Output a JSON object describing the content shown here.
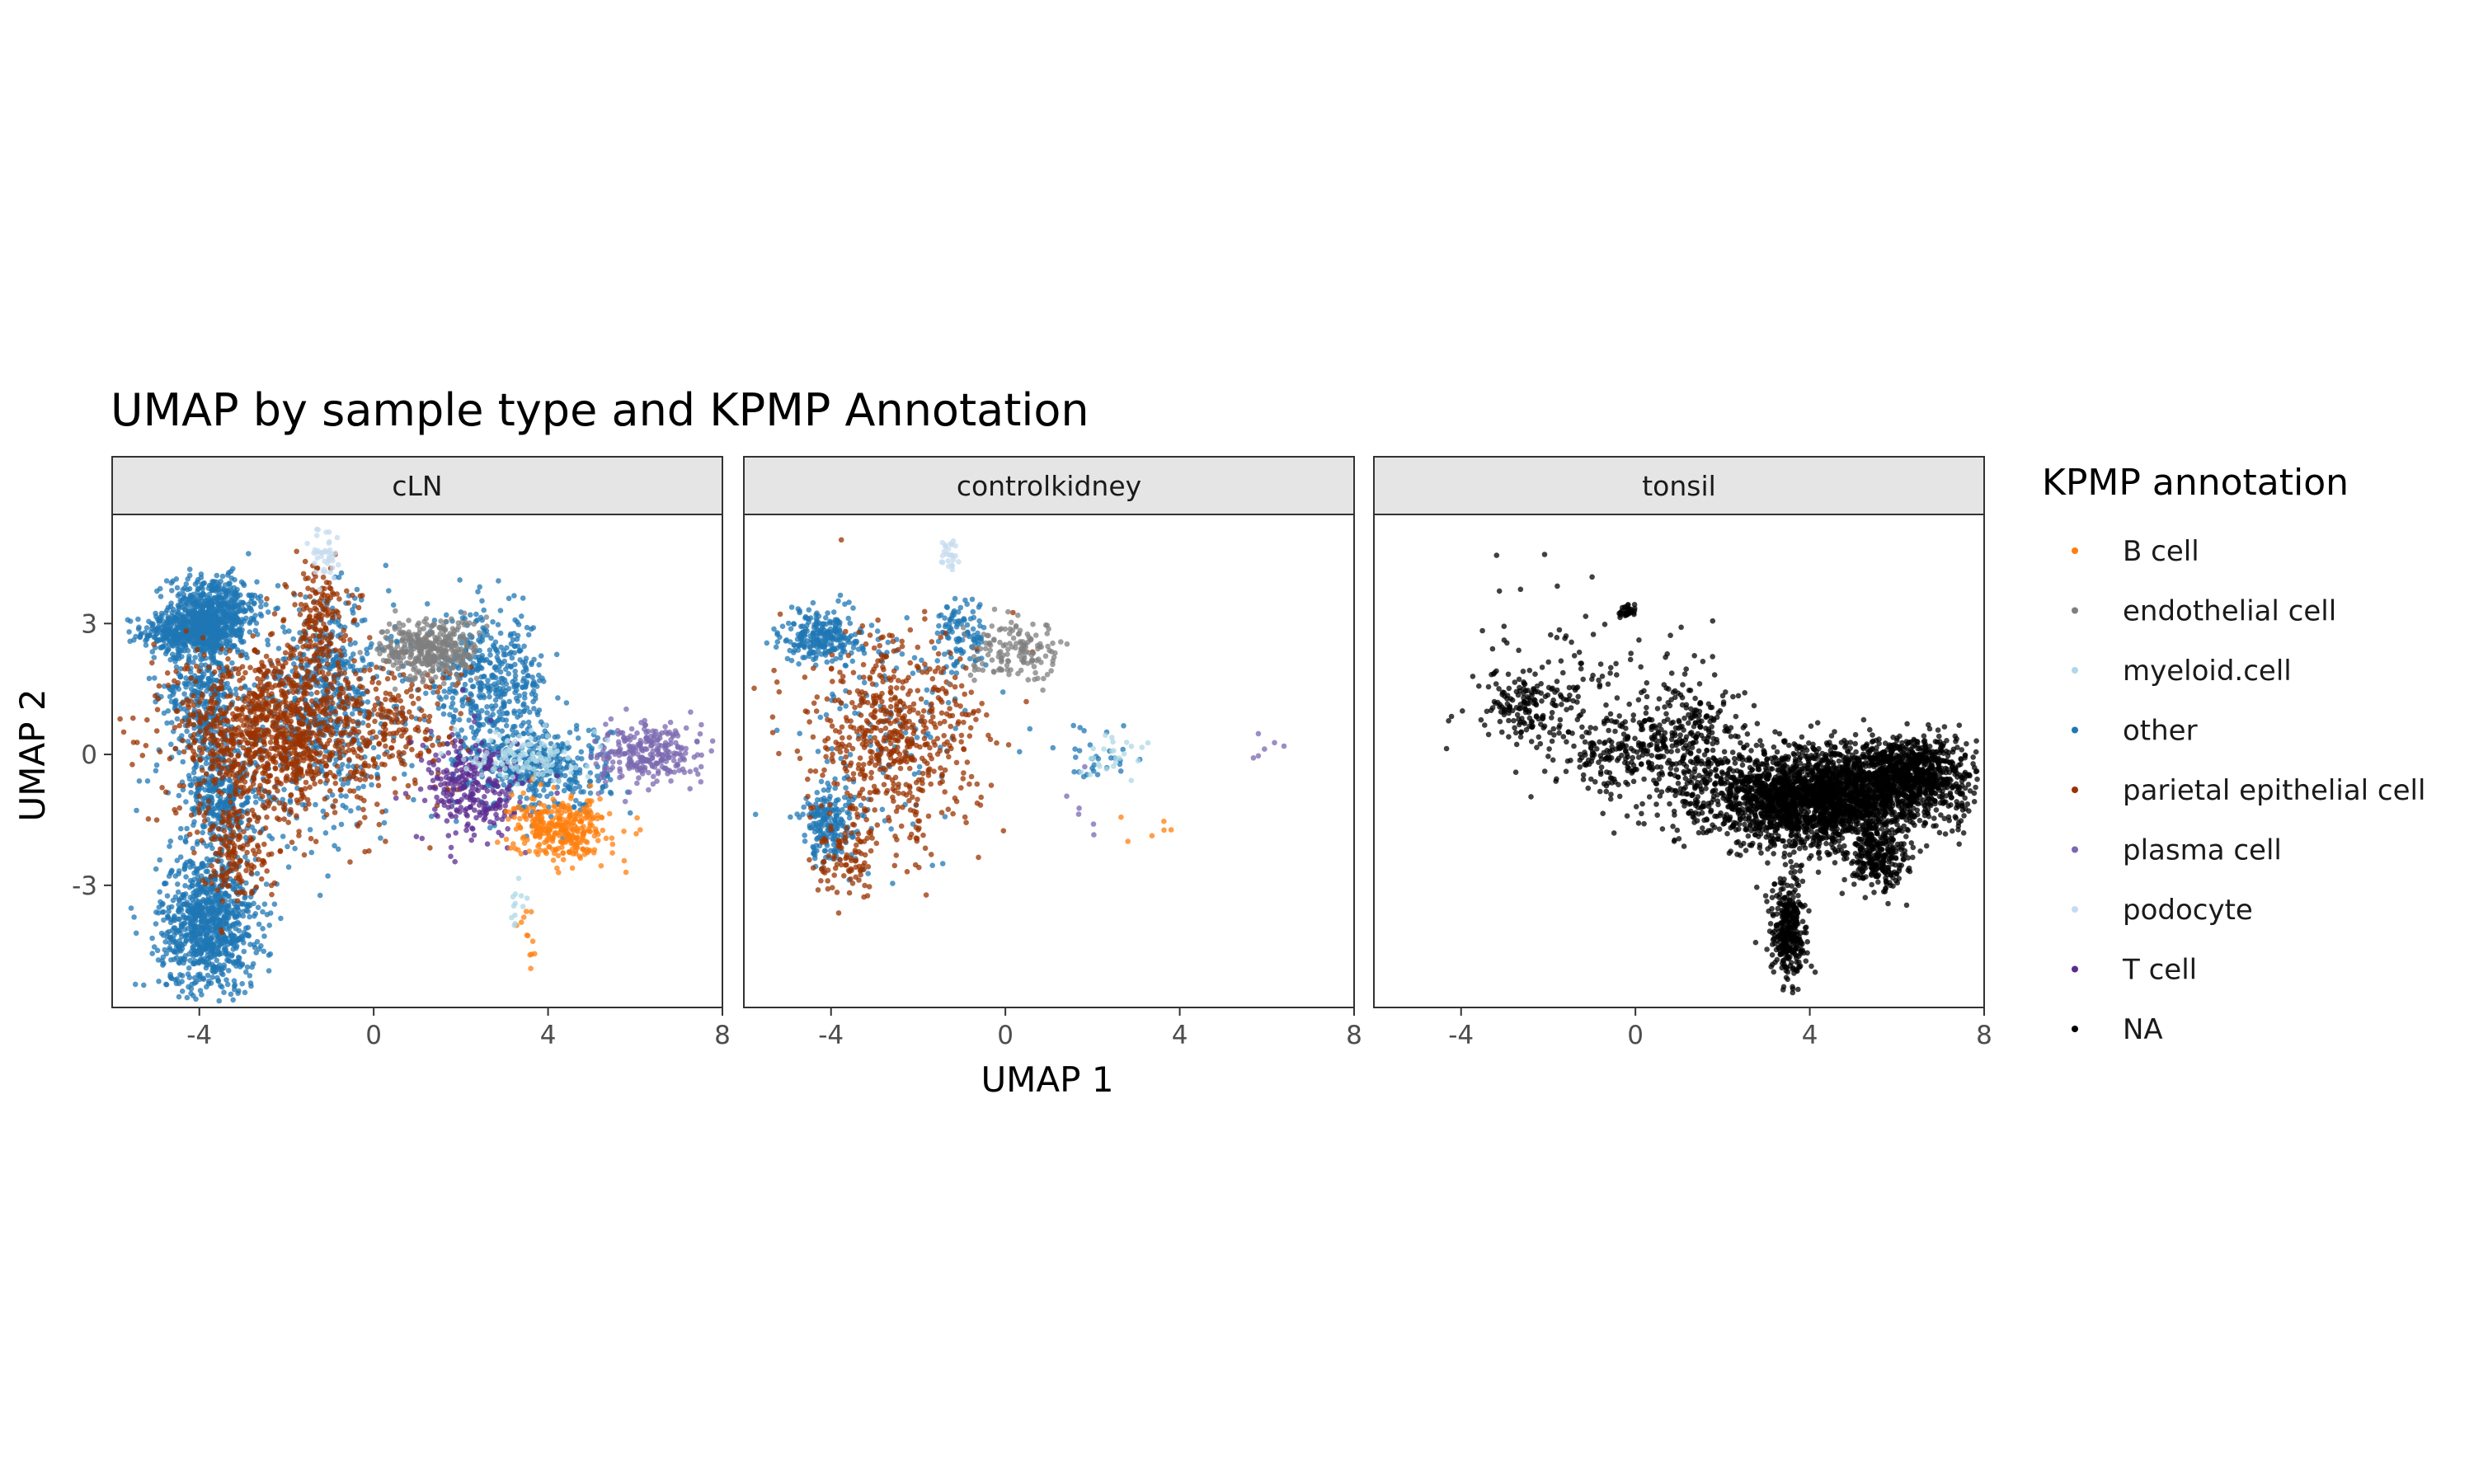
{
  "chart_data": {
    "type": "scatter",
    "title": "UMAP by sample type and KPMP Annotation",
    "xlabel": "UMAP 1",
    "ylabel": "UMAP 2",
    "xlim": [
      -6,
      8
    ],
    "ylim": [
      -5.8,
      5.5
    ],
    "x_ticks": [
      -4,
      0,
      4,
      8
    ],
    "y_ticks": [
      -3,
      0,
      3
    ],
    "grid": false,
    "legend_title": "KPMP annotation",
    "legend_position": "right",
    "panels": [
      {
        "name": "cLN",
        "clusters": [
          {
            "category": "other",
            "cx": -4.1,
            "cy": 2.8,
            "sx": 0.6,
            "sy": 0.25,
            "n": 500
          },
          {
            "category": "other",
            "cx": -3.7,
            "cy": 3.4,
            "sx": 0.5,
            "sy": 0.35,
            "n": 400
          },
          {
            "category": "other",
            "cx": -3.9,
            "cy": 1.5,
            "sx": 0.4,
            "sy": 1.0,
            "n": 400
          },
          {
            "category": "other",
            "cx": -3.5,
            "cy": -1.0,
            "sx": 0.4,
            "sy": 0.6,
            "n": 300
          },
          {
            "category": "other",
            "cx": -3.8,
            "cy": -3.9,
            "sx": 0.55,
            "sy": 0.8,
            "n": 900
          },
          {
            "category": "other",
            "cx": -1.0,
            "cy": 1.5,
            "sx": 0.7,
            "sy": 1.0,
            "n": 400
          },
          {
            "category": "other",
            "cx": 2.6,
            "cy": 1.6,
            "sx": 0.7,
            "sy": 0.8,
            "n": 450
          },
          {
            "category": "other",
            "cx": 3.8,
            "cy": -0.3,
            "sx": 0.8,
            "sy": 0.5,
            "n": 400
          },
          {
            "category": "other",
            "cx": -2.0,
            "cy": 0.2,
            "sx": 1.3,
            "sy": 1.2,
            "n": 300
          },
          {
            "category": "parietal epithelial cell",
            "cx": -2.3,
            "cy": 0.5,
            "sx": 1.1,
            "sy": 1.0,
            "n": 1100
          },
          {
            "category": "parietal epithelial cell",
            "cx": -1.3,
            "cy": 3.2,
            "sx": 0.35,
            "sy": 0.6,
            "n": 150
          },
          {
            "category": "parietal epithelial cell",
            "cx": -3.2,
            "cy": -2.2,
            "sx": 0.4,
            "sy": 0.6,
            "n": 150
          },
          {
            "category": "parietal epithelial cell",
            "cx": 0.5,
            "cy": 0.6,
            "sx": 0.8,
            "sy": 0.8,
            "n": 200
          },
          {
            "category": "endothelial cell",
            "cx": 1.3,
            "cy": 2.4,
            "sx": 0.55,
            "sy": 0.35,
            "n": 350
          },
          {
            "category": "T cell",
            "cx": 2.3,
            "cy": -0.8,
            "sx": 0.6,
            "sy": 0.6,
            "n": 280
          },
          {
            "category": "B cell",
            "cx": 4.3,
            "cy": -1.7,
            "sx": 0.55,
            "sy": 0.35,
            "n": 320
          },
          {
            "category": "B cell",
            "cx": 3.5,
            "cy": -4.3,
            "sx": 0.1,
            "sy": 0.5,
            "n": 12
          },
          {
            "category": "plasma cell",
            "cx": 6.3,
            "cy": 0.0,
            "sx": 0.6,
            "sy": 0.35,
            "n": 260
          },
          {
            "category": "myeloid.cell",
            "cx": 3.5,
            "cy": 0.0,
            "sx": 0.6,
            "sy": 0.3,
            "n": 120
          },
          {
            "category": "myeloid.cell",
            "cx": 3.3,
            "cy": -3.6,
            "sx": 0.12,
            "sy": 0.4,
            "n": 12
          },
          {
            "category": "podocyte",
            "cx": -1.1,
            "cy": 4.6,
            "sx": 0.15,
            "sy": 0.25,
            "n": 40
          }
        ]
      },
      {
        "name": "controlkidney",
        "clusters": [
          {
            "category": "other",
            "cx": -4.2,
            "cy": 2.7,
            "sx": 0.45,
            "sy": 0.3,
            "n": 250
          },
          {
            "category": "other",
            "cx": -4.0,
            "cy": -1.6,
            "sx": 0.35,
            "sy": 0.45,
            "n": 200
          },
          {
            "category": "other",
            "cx": -1.0,
            "cy": 2.8,
            "sx": 0.3,
            "sy": 0.4,
            "n": 100
          },
          {
            "category": "other",
            "cx": -2.5,
            "cy": 0.5,
            "sx": 1.0,
            "sy": 1.2,
            "n": 120
          },
          {
            "category": "other",
            "cx": 2.2,
            "cy": -0.1,
            "sx": 0.5,
            "sy": 0.4,
            "n": 30
          },
          {
            "category": "parietal epithelial cell",
            "cx": -2.6,
            "cy": 0.3,
            "sx": 1.0,
            "sy": 1.2,
            "n": 600
          },
          {
            "category": "parietal epithelial cell",
            "cx": -3.6,
            "cy": -2.5,
            "sx": 0.4,
            "sy": 0.4,
            "n": 80
          },
          {
            "category": "endothelial cell",
            "cx": 0.3,
            "cy": 2.3,
            "sx": 0.55,
            "sy": 0.35,
            "n": 140
          },
          {
            "category": "B cell",
            "cx": 3.4,
            "cy": -1.6,
            "sx": 0.3,
            "sy": 0.2,
            "n": 6
          },
          {
            "category": "plasma cell",
            "cx": 6.0,
            "cy": 0.2,
            "sx": 0.2,
            "sy": 0.2,
            "n": 6
          },
          {
            "category": "plasma cell",
            "cx": 1.8,
            "cy": -1.1,
            "sx": 0.2,
            "sy": 0.3,
            "n": 6
          },
          {
            "category": "myeloid.cell",
            "cx": 2.5,
            "cy": 0.0,
            "sx": 0.4,
            "sy": 0.3,
            "n": 25
          },
          {
            "category": "podocyte",
            "cx": -1.3,
            "cy": 4.6,
            "sx": 0.12,
            "sy": 0.2,
            "n": 25
          }
        ]
      },
      {
        "name": "tonsil",
        "clusters": [
          {
            "category": "NA",
            "cx": 4.2,
            "cy": -1.0,
            "sx": 1.3,
            "sy": 0.55,
            "n": 2500
          },
          {
            "category": "NA",
            "cx": 6.3,
            "cy": -0.4,
            "sx": 0.7,
            "sy": 0.4,
            "n": 800
          },
          {
            "category": "NA",
            "cx": 5.5,
            "cy": -2.4,
            "sx": 0.35,
            "sy": 0.4,
            "n": 250
          },
          {
            "category": "NA",
            "cx": 3.5,
            "cy": -4.1,
            "sx": 0.2,
            "sy": 0.6,
            "n": 350
          },
          {
            "category": "NA",
            "cx": 1.2,
            "cy": 0.2,
            "sx": 0.7,
            "sy": 0.7,
            "n": 300
          },
          {
            "category": "NA",
            "cx": -0.5,
            "cy": 0.0,
            "sx": 0.6,
            "sy": 0.5,
            "n": 150
          },
          {
            "category": "NA",
            "cx": -2.5,
            "cy": 1.1,
            "sx": 0.6,
            "sy": 0.4,
            "n": 150
          },
          {
            "category": "NA",
            "cx": -0.2,
            "cy": 3.3,
            "sx": 0.12,
            "sy": 0.1,
            "n": 30
          },
          {
            "category": "NA",
            "cx": -1.0,
            "cy": 1.5,
            "sx": 1.6,
            "sy": 1.2,
            "n": 120
          }
        ]
      }
    ],
    "categories": [
      {
        "name": "B cell",
        "color": "#ff7f0e"
      },
      {
        "name": "endothelial cell",
        "color": "#7f7f7f"
      },
      {
        "name": "myeloid.cell",
        "color": "#aed8e6"
      },
      {
        "name": "other",
        "color": "#1f77b4"
      },
      {
        "name": "parietal epithelial cell",
        "color": "#993300"
      },
      {
        "name": "plasma cell",
        "color": "#7b68b0"
      },
      {
        "name": "podocyte",
        "color": "#c6dbef"
      },
      {
        "name": "T cell",
        "color": "#5b2c90"
      },
      {
        "name": "NA",
        "color": "#000000"
      }
    ]
  }
}
